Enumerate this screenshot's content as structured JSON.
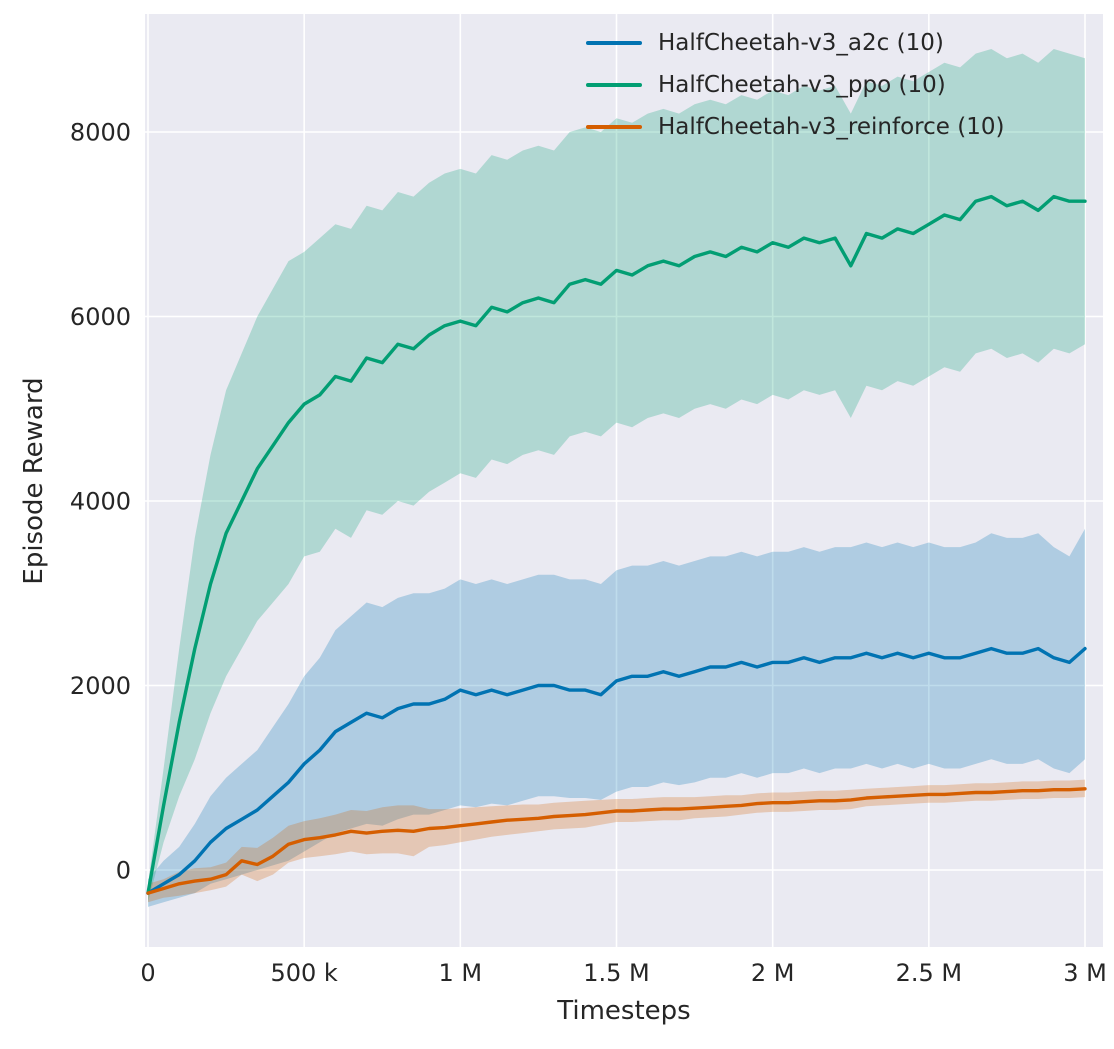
{
  "figure": {
    "xlabel": "Timesteps",
    "ylabel": "Episode Reward",
    "background_color": "#eaeaf2",
    "grid_color": "#ffffff",
    "text_color": "#262626"
  },
  "chart_data": {
    "type": "line",
    "title": "",
    "xlabel": "Timesteps",
    "ylabel": "Episode Reward",
    "grid": true,
    "legend_position": "upper center-right",
    "xlim": [
      0,
      3050000
    ],
    "ylim": [
      -900,
      9300
    ],
    "x_ticks": {
      "values": [
        0,
        500000,
        1000000,
        1500000,
        2000000,
        2500000,
        3000000
      ],
      "labels": [
        "0",
        "500 k",
        "1 M",
        "1.5 M",
        "2 M",
        "2.5 M",
        "3 M"
      ]
    },
    "y_ticks": {
      "values": [
        0,
        2000,
        4000,
        6000,
        8000
      ],
      "labels": [
        "0",
        "2000",
        "4000",
        "6000",
        "8000"
      ]
    },
    "x_unit_multiplier": 1000,
    "x_thousands": [
      0,
      50,
      100,
      150,
      200,
      250,
      300,
      350,
      400,
      450,
      500,
      550,
      600,
      650,
      700,
      750,
      800,
      850,
      900,
      950,
      1000,
      1050,
      1100,
      1150,
      1200,
      1250,
      1300,
      1350,
      1400,
      1450,
      1500,
      1550,
      1600,
      1650,
      1700,
      1750,
      1800,
      1850,
      1900,
      1950,
      2000,
      2050,
      2100,
      2150,
      2200,
      2250,
      2300,
      2350,
      2400,
      2450,
      2500,
      2550,
      2600,
      2650,
      2700,
      2750,
      2800,
      2850,
      2900,
      2950,
      3000
    ],
    "series": [
      {
        "name": "HalfCheetah-v3_a2c (10)",
        "color": "#0173b2",
        "mean": [
          -250,
          -150,
          -50,
          100,
          300,
          450,
          550,
          650,
          800,
          950,
          1150,
          1300,
          1500,
          1600,
          1700,
          1650,
          1750,
          1800,
          1800,
          1850,
          1950,
          1900,
          1950,
          1900,
          1950,
          2000,
          2000,
          1950,
          1950,
          1900,
          2050,
          2100,
          2100,
          2150,
          2100,
          2150,
          2200,
          2200,
          2250,
          2200,
          2250,
          2250,
          2300,
          2250,
          2300,
          2300,
          2350,
          2300,
          2350,
          2300,
          2350,
          2300,
          2300,
          2350,
          2400,
          2350,
          2350,
          2400,
          2300,
          2250,
          2400
        ],
        "low": [
          -400,
          -350,
          -300,
          -250,
          -150,
          -100,
          -50,
          0,
          50,
          100,
          200,
          300,
          400,
          450,
          500,
          480,
          550,
          600,
          600,
          650,
          700,
          680,
          720,
          700,
          750,
          800,
          800,
          780,
          780,
          760,
          850,
          900,
          900,
          950,
          920,
          950,
          1000,
          1000,
          1050,
          1000,
          1050,
          1050,
          1100,
          1050,
          1100,
          1100,
          1150,
          1100,
          1150,
          1100,
          1150,
          1100,
          1100,
          1150,
          1200,
          1150,
          1150,
          1200,
          1100,
          1050,
          1200
        ],
        "high": [
          -100,
          100,
          250,
          500,
          800,
          1000,
          1150,
          1300,
          1550,
          1800,
          2100,
          2300,
          2600,
          2750,
          2900,
          2850,
          2950,
          3000,
          3000,
          3050,
          3150,
          3100,
          3150,
          3100,
          3150,
          3200,
          3200,
          3150,
          3150,
          3100,
          3250,
          3300,
          3300,
          3350,
          3300,
          3350,
          3400,
          3400,
          3450,
          3400,
          3450,
          3450,
          3500,
          3450,
          3500,
          3500,
          3550,
          3500,
          3550,
          3500,
          3550,
          3500,
          3500,
          3550,
          3650,
          3600,
          3600,
          3650,
          3500,
          3400,
          3700
        ]
      },
      {
        "name": "HalfCheetah-v3_ppo (10)",
        "color": "#029e73",
        "mean": [
          -250,
          700,
          1600,
          2400,
          3100,
          3650,
          4000,
          4350,
          4600,
          4850,
          5050,
          5150,
          5350,
          5300,
          5550,
          5500,
          5700,
          5650,
          5800,
          5900,
          5950,
          5900,
          6100,
          6050,
          6150,
          6200,
          6150,
          6350,
          6400,
          6350,
          6500,
          6450,
          6550,
          6600,
          6550,
          6650,
          6700,
          6650,
          6750,
          6700,
          6800,
          6750,
          6850,
          6800,
          6850,
          6550,
          6900,
          6850,
          6950,
          6900,
          7000,
          7100,
          7050,
          7250,
          7300,
          7200,
          7250,
          7150,
          7300,
          7250,
          7250
        ],
        "low": [
          -350,
          300,
          800,
          1200,
          1700,
          2100,
          2400,
          2700,
          2900,
          3100,
          3400,
          3450,
          3700,
          3600,
          3900,
          3850,
          4000,
          3950,
          4100,
          4200,
          4300,
          4250,
          4450,
          4400,
          4500,
          4550,
          4500,
          4700,
          4750,
          4700,
          4850,
          4800,
          4900,
          4950,
          4900,
          5000,
          5050,
          5000,
          5100,
          5050,
          5150,
          5100,
          5200,
          5150,
          5200,
          4900,
          5250,
          5200,
          5300,
          5250,
          5350,
          5450,
          5400,
          5600,
          5650,
          5550,
          5600,
          5500,
          5650,
          5600,
          5700
        ],
        "high": [
          -150,
          1100,
          2400,
          3600,
          4500,
          5200,
          5600,
          6000,
          6300,
          6600,
          6700,
          6850,
          7000,
          6950,
          7200,
          7150,
          7350,
          7300,
          7450,
          7550,
          7600,
          7550,
          7750,
          7700,
          7800,
          7850,
          7800,
          8000,
          8050,
          8000,
          8150,
          8100,
          8200,
          8250,
          8200,
          8300,
          8350,
          8300,
          8400,
          8350,
          8450,
          8400,
          8500,
          8450,
          8500,
          8200,
          8550,
          8500,
          8600,
          8550,
          8650,
          8750,
          8700,
          8850,
          8900,
          8800,
          8850,
          8750,
          8900,
          8850,
          8800
        ]
      },
      {
        "name": "HalfCheetah-v3_reinforce (10)",
        "color": "#d55e00",
        "mean": [
          -250,
          -200,
          -150,
          -120,
          -100,
          -50,
          100,
          60,
          150,
          280,
          330,
          350,
          380,
          420,
          400,
          420,
          430,
          420,
          450,
          460,
          480,
          500,
          520,
          540,
          550,
          560,
          580,
          590,
          600,
          620,
          640,
          640,
          650,
          660,
          660,
          670,
          680,
          690,
          700,
          720,
          730,
          730,
          740,
          750,
          750,
          760,
          780,
          790,
          800,
          810,
          820,
          820,
          830,
          840,
          840,
          850,
          860,
          860,
          870,
          870,
          880
        ],
        "low": [
          -350,
          -300,
          -280,
          -250,
          -220,
          -180,
          -50,
          -120,
          -50,
          80,
          130,
          150,
          170,
          200,
          170,
          180,
          180,
          150,
          250,
          270,
          300,
          330,
          360,
          380,
          400,
          420,
          440,
          450,
          460,
          490,
          520,
          520,
          530,
          540,
          540,
          560,
          570,
          580,
          600,
          620,
          630,
          630,
          640,
          650,
          650,
          660,
          690,
          700,
          710,
          720,
          730,
          730,
          740,
          750,
          750,
          760,
          770,
          770,
          780,
          780,
          790
        ],
        "high": [
          -150,
          -100,
          -20,
          20,
          30,
          80,
          250,
          240,
          350,
          480,
          530,
          560,
          600,
          650,
          640,
          680,
          700,
          700,
          660,
          660,
          670,
          680,
          690,
          700,
          710,
          710,
          730,
          740,
          750,
          760,
          770,
          770,
          780,
          790,
          790,
          790,
          800,
          810,
          810,
          830,
          840,
          840,
          850,
          860,
          860,
          870,
          880,
          890,
          900,
          910,
          920,
          920,
          930,
          940,
          940,
          950,
          960,
          960,
          970,
          970,
          980
        ]
      }
    ]
  },
  "legend": {
    "items": [
      {
        "label": "HalfCheetah-v3_a2c (10)",
        "color": "#0173b2"
      },
      {
        "label": "HalfCheetah-v3_ppo (10)",
        "color": "#029e73"
      },
      {
        "label": "HalfCheetah-v3_reinforce (10)",
        "color": "#d55e00"
      }
    ]
  }
}
